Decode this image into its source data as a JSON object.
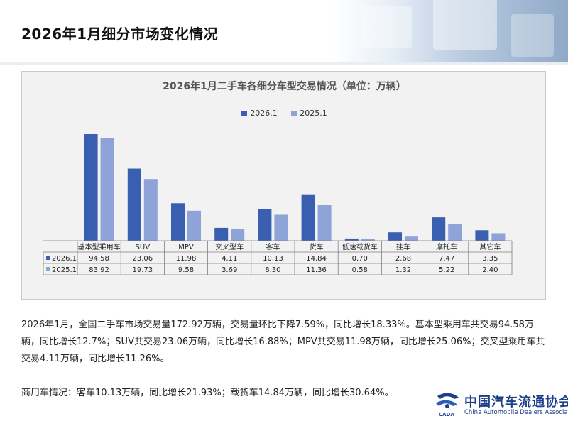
{
  "page": {
    "title": "2026年1月细分市场变化情况"
  },
  "chart_data": {
    "type": "bar",
    "title": "2026年1月二手车各细分车型交易情况（单位：万辆）",
    "categories": [
      "基本型乘用车",
      "SUV",
      "MPV",
      "交叉型车",
      "客车",
      "货车",
      "低速载货车",
      "挂车",
      "摩托车",
      "其它车"
    ],
    "series": [
      {
        "name": "2026.1",
        "values": [
          94.58,
          23.06,
          11.98,
          4.11,
          10.13,
          14.84,
          0.7,
          2.68,
          7.47,
          3.35
        ],
        "labels": [
          "94.58",
          "23.06",
          "11.98",
          "4.11",
          "10.13",
          "14.84",
          "0.70",
          "2.68",
          "7.47",
          "3.35"
        ],
        "color": "#3a5fb0"
      },
      {
        "name": "2025.1",
        "values": [
          83.92,
          19.73,
          9.58,
          3.69,
          8.3,
          11.36,
          0.58,
          1.32,
          5.22,
          2.4
        ],
        "labels": [
          "83.92",
          "19.73",
          "9.58",
          "3.69",
          "8.30",
          "11.36",
          "0.58",
          "1.32",
          "5.22",
          "2.40"
        ],
        "color": "#8ea3d8"
      }
    ],
    "legend_position": "top-center",
    "data_table": true,
    "axis_break": true,
    "grid": false
  },
  "text": {
    "p1": "2026年1月，全国二手车市场交易量172.92万辆，交易量环比下降7.59%，同比增长18.33%。基本型乘用车共交易94.58万辆，同比增长12.7%；SUV共交易23.06万辆，同比增长16.88%；MPV共交易11.98万辆，同比增长25.06%；交叉型乘用车共交易4.11万辆，同比增长11.26%。",
    "p2": "商用车情况：客车10.13万辆，同比增长21.93%；载货车14.84万辆，同比增长30.64%。"
  },
  "logo": {
    "cn": "中国汽车流通协会",
    "en": "China Automobile Dealers Association",
    "mark_text": "CADA"
  }
}
